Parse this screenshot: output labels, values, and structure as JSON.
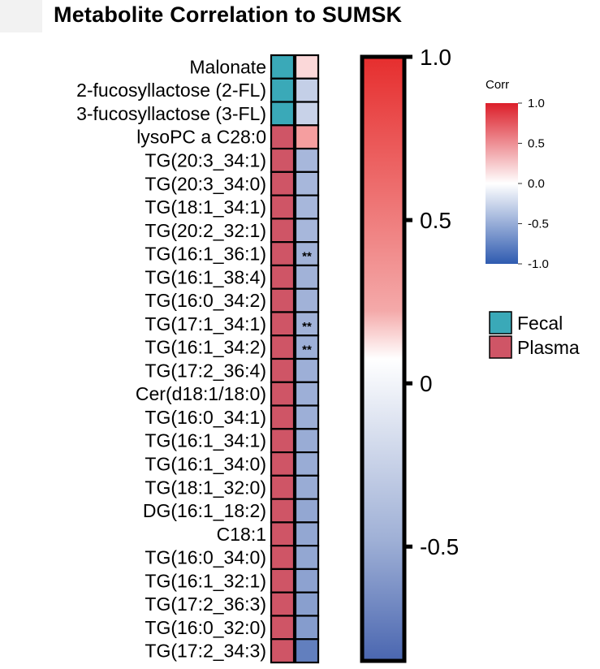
{
  "title": "Metabolite Correlation to SUMSK",
  "chart_data": {
    "type": "heatmap",
    "title": "Metabolite Correlation to SUMSK",
    "rows": [
      {
        "label": "Malonate",
        "group": "Fecal",
        "corr": 0.18,
        "sig": ""
      },
      {
        "label": "2-fucosyllactose (2-FL)",
        "group": "Fecal",
        "corr": -0.3,
        "sig": ""
      },
      {
        "label": "3-fucosyllactose (3-FL)",
        "group": "Fecal",
        "corr": -0.28,
        "sig": ""
      },
      {
        "label": "lysoPC a C28:0",
        "group": "Plasma",
        "corr": 0.45,
        "sig": ""
      },
      {
        "label": "TG(20:3_34:1)",
        "group": "Plasma",
        "corr": -0.45,
        "sig": ""
      },
      {
        "label": "TG(20:3_34:0)",
        "group": "Plasma",
        "corr": -0.45,
        "sig": ""
      },
      {
        "label": "TG(18:1_34:1)",
        "group": "Plasma",
        "corr": -0.45,
        "sig": ""
      },
      {
        "label": "TG(20:2_32:1)",
        "group": "Plasma",
        "corr": -0.45,
        "sig": ""
      },
      {
        "label": "TG(16:1_36:1)",
        "group": "Plasma",
        "corr": -0.48,
        "sig": "**"
      },
      {
        "label": "TG(16:1_38:4)",
        "group": "Plasma",
        "corr": -0.48,
        "sig": ""
      },
      {
        "label": "TG(16:0_34:2)",
        "group": "Plasma",
        "corr": -0.48,
        "sig": ""
      },
      {
        "label": "TG(17:1_34:1)",
        "group": "Plasma",
        "corr": -0.48,
        "sig": "**"
      },
      {
        "label": "TG(16:1_34:2)",
        "group": "Plasma",
        "corr": -0.5,
        "sig": "**"
      },
      {
        "label": "TG(17:2_36:4)",
        "group": "Plasma",
        "corr": -0.5,
        "sig": ""
      },
      {
        "label": "Cer(d18:1/18:0)",
        "group": "Plasma",
        "corr": -0.5,
        "sig": ""
      },
      {
        "label": "TG(16:0_34:1)",
        "group": "Plasma",
        "corr": -0.5,
        "sig": ""
      },
      {
        "label": "TG(16:1_34:1)",
        "group": "Plasma",
        "corr": -0.52,
        "sig": ""
      },
      {
        "label": "TG(16:1_34:0)",
        "group": "Plasma",
        "corr": -0.52,
        "sig": ""
      },
      {
        "label": "TG(18:1_32:0)",
        "group": "Plasma",
        "corr": -0.52,
        "sig": ""
      },
      {
        "label": "DG(16:1_18:2)",
        "group": "Plasma",
        "corr": -0.55,
        "sig": ""
      },
      {
        "label": "C18:1",
        "group": "Plasma",
        "corr": -0.55,
        "sig": ""
      },
      {
        "label": "TG(16:0_34:0)",
        "group": "Plasma",
        "corr": -0.55,
        "sig": ""
      },
      {
        "label": "TG(16:1_32:1)",
        "group": "Plasma",
        "corr": -0.58,
        "sig": ""
      },
      {
        "label": "TG(17:2_36:3)",
        "group": "Plasma",
        "corr": -0.6,
        "sig": ""
      },
      {
        "label": "TG(16:0_32:0)",
        "group": "Plasma",
        "corr": -0.62,
        "sig": ""
      },
      {
        "label": "TG(17:2_34:3)",
        "group": "Plasma",
        "corr": -0.8,
        "sig": ""
      }
    ],
    "big_colorbar": {
      "ticks": [
        "1.0",
        "0.5",
        "0",
        "-0.5"
      ],
      "tick_values": [
        1.0,
        0.5,
        0,
        -0.5
      ],
      "range": [
        -0.85,
        1.0
      ]
    },
    "small_colorbar": {
      "title": "Corr",
      "ticks": [
        "1.0",
        "0.5",
        "0.0",
        "-0.5",
        "-1.0"
      ],
      "tick_values": [
        1.0,
        0.5,
        0.0,
        -0.5,
        -1.0
      ],
      "range": [
        -1.0,
        1.0
      ]
    },
    "legend": [
      {
        "label": "Fecal",
        "color": "#3aa9b8"
      },
      {
        "label": "Plasma",
        "color": "#cf5566"
      }
    ],
    "colors": {
      "positive": "#e8282a",
      "zero": "#ffffff",
      "negative": "#3b5fae",
      "fecal": "#3aa9b8",
      "plasma": "#cf5566"
    }
  }
}
